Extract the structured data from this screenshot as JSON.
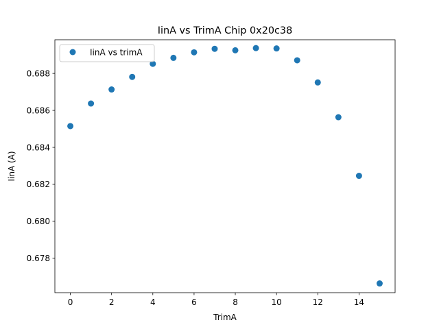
{
  "chart_data": {
    "type": "scatter",
    "title": "IinA vs TrimA Chip 0x20c38",
    "xlabel": "TrimA",
    "ylabel": "IinA (A)",
    "xlim": [
      -0.75,
      15.75
    ],
    "ylim": [
      0.67614,
      0.68982
    ],
    "x_ticks": [
      0,
      2,
      4,
      6,
      8,
      10,
      12,
      14
    ],
    "y_ticks": [
      0.678,
      0.68,
      0.682,
      0.684,
      0.686,
      0.688
    ],
    "y_tick_labels": [
      "0.678",
      "0.680",
      "0.682",
      "0.684",
      "0.686",
      "0.688"
    ],
    "legend_position": "top-left",
    "grid": false,
    "series": [
      {
        "name": "IinA vs trimA",
        "color": "#1f77b4",
        "x": [
          0,
          1,
          2,
          3,
          4,
          5,
          6,
          7,
          8,
          9,
          10,
          11,
          12,
          13,
          14,
          15
        ],
        "y": [
          0.68515,
          0.68637,
          0.68713,
          0.68781,
          0.68852,
          0.68884,
          0.68914,
          0.68933,
          0.68925,
          0.68937,
          0.68935,
          0.68871,
          0.68751,
          0.68563,
          0.68246,
          0.67664
        ]
      }
    ]
  }
}
